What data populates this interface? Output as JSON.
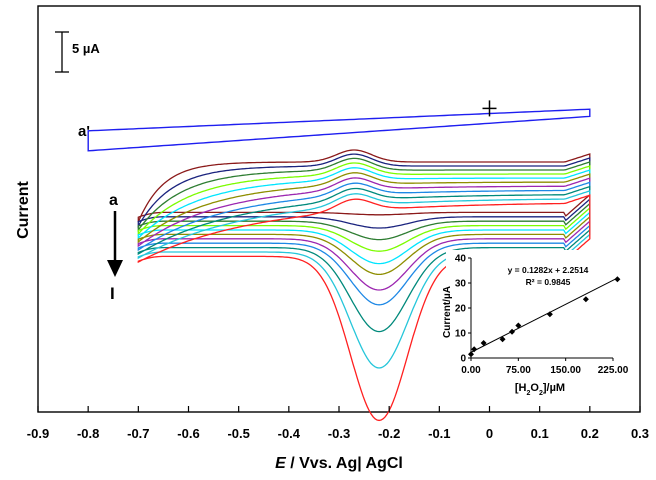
{
  "chart_data": [
    {
      "type": "line",
      "title": "",
      "xlabel_italic": "E",
      "xlabel_rest": " / Vvs. Ag| AgCl",
      "ylabel": "Current",
      "xlim": [
        -0.9,
        0.3
      ],
      "x_ticks": [
        -0.9,
        -0.8,
        -0.7,
        -0.6,
        -0.5,
        -0.4,
        -0.3,
        -0.2,
        -0.1,
        0,
        0.1,
        0.2,
        0.3
      ],
      "x_tick_labels": [
        "-0.9",
        "-0.8",
        "-0.7",
        "-0.6",
        "-0.5",
        "-0.4",
        "-0.3",
        "-0.2",
        "-0.1",
        "0",
        "0.1",
        "0.2",
        "0.3"
      ],
      "y_unit": "µA",
      "y_ticks_shown": false,
      "scale_bar_label": "5 µA",
      "scale_bar_value": 5,
      "annotations": {
        "start": "a",
        "end": "I",
        "reference": "a'"
      },
      "grid": false,
      "legend": "none",
      "reduction_peak_potential": -0.22,
      "series": [
        {
          "color": "#8b1a1a",
          "cathodic_peak_current": 0.3
        },
        {
          "color": "#1a237e",
          "cathodic_peak_current": 1.4
        },
        {
          "color": "#2e7d32",
          "cathodic_peak_current": 2.3
        },
        {
          "color": "#7cfc00",
          "cathodic_peak_current": 3.2
        },
        {
          "color": "#00e5ff",
          "cathodic_peak_current": 4.2
        },
        {
          "color": "#8e8e00",
          "cathodic_peak_current": 5.0
        },
        {
          "color": "#9c27b0",
          "cathodic_peak_current": 6.4
        },
        {
          "color": "#1e88e5",
          "cathodic_peak_current": 7.7
        },
        {
          "color": "#00897b",
          "cathodic_peak_current": 10.5
        },
        {
          "color": "#26c6da",
          "cathodic_peak_current": 14.5
        },
        {
          "color": "#ff2020",
          "cathodic_peak_current": 20.5
        }
      ],
      "reference_curve": {
        "name": "a'",
        "color": "#1e1ef0"
      }
    },
    {
      "type": "scatter",
      "xlabel": "[H2O2]/µM",
      "ylabel": "Current/µA",
      "xlim": [
        0,
        225
      ],
      "ylim": [
        0,
        40
      ],
      "x_ticks": [
        0,
        75,
        150,
        225
      ],
      "x_tick_labels": [
        "0.00",
        "75.00",
        "150.00",
        "225.00"
      ],
      "y_ticks": [
        0,
        10,
        20,
        30,
        40
      ],
      "y_tick_labels": [
        "0",
        "10",
        "20",
        "30",
        "40"
      ],
      "equation": "y = 0.1282x + 2.2514",
      "r_squared": "R² = 0.9845",
      "fit": {
        "slope": 0.1282,
        "intercept": 2.2514
      },
      "points": [
        {
          "x": 0,
          "y": 1.5
        },
        {
          "x": 5,
          "y": 3.5
        },
        {
          "x": 20,
          "y": 6
        },
        {
          "x": 50,
          "y": 7.5
        },
        {
          "x": 65,
          "y": 10.5
        },
        {
          "x": 75,
          "y": 13
        },
        {
          "x": 125,
          "y": 17.5
        },
        {
          "x": 182,
          "y": 23.5
        },
        {
          "x": 232,
          "y": 31.5
        }
      ]
    }
  ]
}
